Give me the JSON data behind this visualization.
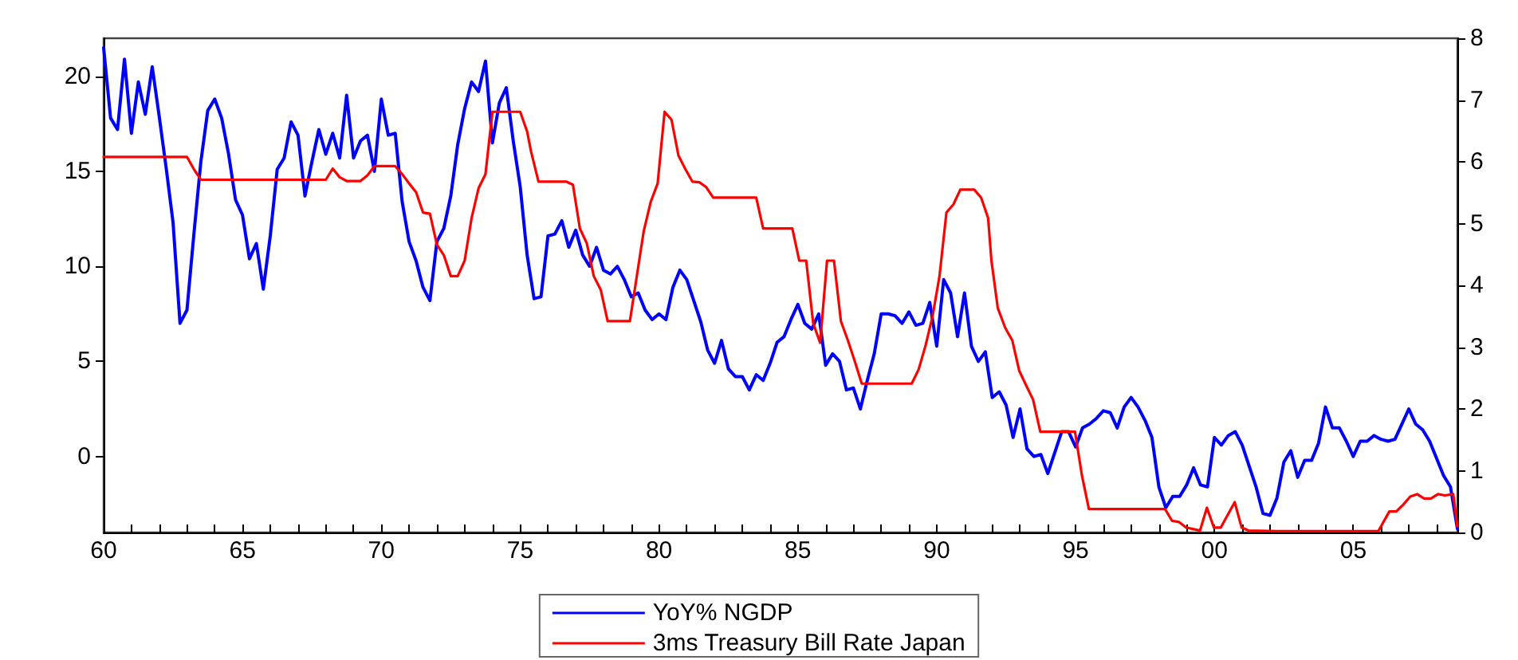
{
  "chart_data": {
    "type": "line",
    "legend": "bottom",
    "xlim": [
      1960,
      2008.75
    ],
    "xticks": [
      {
        "value": 1960,
        "label": "60"
      },
      {
        "value": 1961,
        "label": null
      },
      {
        "value": 1962,
        "label": null
      },
      {
        "value": 1963,
        "label": null
      },
      {
        "value": 1964,
        "label": null
      },
      {
        "value": 1965,
        "label": "65"
      },
      {
        "value": 1966,
        "label": null
      },
      {
        "value": 1967,
        "label": null
      },
      {
        "value": 1968,
        "label": null
      },
      {
        "value": 1969,
        "label": null
      },
      {
        "value": 1970,
        "label": "70"
      },
      {
        "value": 1971,
        "label": null
      },
      {
        "value": 1972,
        "label": null
      },
      {
        "value": 1973,
        "label": null
      },
      {
        "value": 1974,
        "label": null
      },
      {
        "value": 1975,
        "label": "75"
      },
      {
        "value": 1976,
        "label": null
      },
      {
        "value": 1977,
        "label": null
      },
      {
        "value": 1978,
        "label": null
      },
      {
        "value": 1979,
        "label": null
      },
      {
        "value": 1980,
        "label": "80"
      },
      {
        "value": 1981,
        "label": null
      },
      {
        "value": 1982,
        "label": null
      },
      {
        "value": 1983,
        "label": null
      },
      {
        "value": 1984,
        "label": null
      },
      {
        "value": 1985,
        "label": "85"
      },
      {
        "value": 1986,
        "label": null
      },
      {
        "value": 1987,
        "label": null
      },
      {
        "value": 1988,
        "label": null
      },
      {
        "value": 1989,
        "label": null
      },
      {
        "value": 1990,
        "label": "90"
      },
      {
        "value": 1991,
        "label": null
      },
      {
        "value": 1992,
        "label": null
      },
      {
        "value": 1993,
        "label": null
      },
      {
        "value": 1994,
        "label": null
      },
      {
        "value": 1995,
        "label": "95"
      },
      {
        "value": 1996,
        "label": null
      },
      {
        "value": 1997,
        "label": null
      },
      {
        "value": 1998,
        "label": null
      },
      {
        "value": 1999,
        "label": null
      },
      {
        "value": 2000,
        "label": "00"
      },
      {
        "value": 2001,
        "label": null
      },
      {
        "value": 2002,
        "label": null
      },
      {
        "value": 2003,
        "label": null
      },
      {
        "value": 2004,
        "label": null
      },
      {
        "value": 2005,
        "label": "05"
      },
      {
        "value": 2006,
        "label": null
      },
      {
        "value": 2007,
        "label": null
      },
      {
        "value": 2008,
        "label": null
      }
    ],
    "ylim": [
      -4,
      22
    ],
    "yticks": [
      0,
      5,
      10,
      15,
      20
    ],
    "y2lim": [
      0,
      8
    ],
    "y2ticks": [
      0,
      1,
      2,
      3,
      4,
      5,
      6,
      7,
      8
    ],
    "series": [
      {
        "name": "YoY% NGDP",
        "color": "#0000ff",
        "x": [
          1960,
          1960.25,
          1960.5,
          1960.75,
          1961,
          1961.25,
          1961.5,
          1961.75,
          1962,
          1962.25,
          1962.5,
          1962.75,
          1963,
          1963.25,
          1963.5,
          1963.75,
          1964,
          1964.25,
          1964.5,
          1964.75,
          1965,
          1965.25,
          1965.5,
          1965.75,
          1966,
          1966.25,
          1966.5,
          1966.75,
          1967,
          1967.25,
          1967.5,
          1967.75,
          1968,
          1968.25,
          1968.5,
          1968.75,
          1969,
          1969.25,
          1969.5,
          1969.75,
          1970,
          1970.25,
          1970.5,
          1970.75,
          1971,
          1971.25,
          1971.5,
          1971.75,
          1972,
          1972.25,
          1972.5,
          1972.75,
          1973,
          1973.25,
          1973.5,
          1973.75,
          1974,
          1974.25,
          1974.5,
          1974.75,
          1975,
          1975.25,
          1975.5,
          1975.75,
          1976,
          1976.25,
          1976.5,
          1976.75,
          1977,
          1977.25,
          1977.5,
          1977.75,
          1978,
          1978.25,
          1978.5,
          1978.75,
          1979,
          1979.25,
          1979.5,
          1979.75,
          1980,
          1980.25,
          1980.5,
          1980.75,
          1981,
          1981.25,
          1981.5,
          1981.75,
          1982,
          1982.25,
          1982.5,
          1982.75,
          1983,
          1983.25,
          1983.5,
          1983.75,
          1984,
          1984.25,
          1984.5,
          1984.75,
          1985,
          1985.25,
          1985.5,
          1985.75,
          1986,
          1986.25,
          1986.5,
          1986.75,
          1987,
          1987.25,
          1987.5,
          1987.75,
          1988,
          1988.25,
          1988.5,
          1988.75,
          1989,
          1989.25,
          1989.5,
          1989.75,
          1990,
          1990.25,
          1990.5,
          1990.75,
          1991,
          1991.25,
          1991.5,
          1991.75,
          1992,
          1992.25,
          1992.5,
          1992.75,
          1993,
          1993.25,
          1993.5,
          1993.75,
          1994,
          1994.25,
          1994.5,
          1994.75,
          1995,
          1995.25,
          1995.5,
          1995.75,
          1996,
          1996.25,
          1996.5,
          1996.75,
          1997,
          1997.25,
          1997.5,
          1997.75,
          1998,
          1998.25,
          1998.5,
          1998.75,
          1999,
          1999.25,
          1999.5,
          1999.75,
          2000,
          2000.25,
          2000.5,
          2000.75,
          2001,
          2001.25,
          2001.5,
          2001.75,
          2002,
          2002.25,
          2002.5,
          2002.75,
          2003,
          2003.25,
          2003.5,
          2003.75,
          2004,
          2004.25,
          2004.5,
          2004.75,
          2005,
          2005.25,
          2005.5,
          2005.75,
          2006,
          2006.25,
          2006.5,
          2006.75,
          2007,
          2007.25,
          2007.5,
          2007.75,
          2008,
          2008.25,
          2008.5,
          2008.75
        ],
        "values": [
          21.5,
          17.8,
          17.2,
          20.9,
          17.0,
          19.7,
          18.0,
          20.5,
          17.9,
          15.2,
          12.3,
          7.0,
          7.7,
          11.7,
          15.5,
          18.2,
          18.8,
          17.8,
          15.9,
          13.5,
          12.7,
          10.4,
          11.2,
          8.8,
          11.6,
          15.1,
          15.7,
          17.6,
          16.9,
          13.7,
          15.5,
          17.2,
          15.9,
          17.0,
          15.7,
          19.0,
          15.7,
          16.6,
          16.9,
          15.0,
          18.8,
          16.9,
          17.0,
          13.4,
          11.3,
          10.3,
          8.9,
          8.2,
          11.3,
          12.0,
          13.7,
          16.4,
          18.3,
          19.7,
          19.2,
          20.8,
          16.5,
          18.6,
          19.4,
          16.6,
          14.2,
          10.6,
          8.3,
          8.4,
          11.6,
          11.7,
          12.4,
          11.0,
          11.9,
          10.6,
          10.0,
          11.0,
          9.8,
          9.6,
          10.0,
          9.3,
          8.4,
          8.6,
          7.7,
          7.2,
          7.5,
          7.2,
          8.9,
          9.8,
          9.3,
          8.2,
          7.1,
          5.6,
          4.9,
          6.1,
          4.6,
          4.2,
          4.2,
          3.5,
          4.3,
          4.0,
          4.9,
          6.0,
          6.3,
          7.2,
          8.0,
          7.0,
          6.7,
          7.5,
          4.8,
          5.4,
          5.0,
          3.5,
          3.6,
          2.5,
          4.0,
          5.4,
          7.5,
          7.5,
          7.4,
          7.0,
          7.6,
          6.9,
          7.0,
          8.1,
          5.8,
          9.3,
          8.6,
          6.3,
          8.6,
          5.8,
          5.0,
          5.5,
          3.1,
          3.4,
          2.7,
          1.0,
          2.5,
          0.4,
          0.0,
          0.1,
          -0.9,
          0.2,
          1.3,
          1.3,
          0.5,
          1.5,
          1.7,
          2.0,
          2.4,
          2.3,
          1.5,
          2.6,
          3.1,
          2.6,
          1.9,
          1.0,
          -1.6,
          -2.7,
          -2.1,
          -2.1,
          -1.5,
          -0.6,
          -1.5,
          -1.6,
          1.0,
          0.6,
          1.1,
          1.3,
          0.6,
          -0.5,
          -1.6,
          -3.0,
          -3.1,
          -2.2,
          -0.3,
          0.3,
          -1.1,
          -0.2,
          -0.2,
          0.7,
          2.6,
          1.5,
          1.5,
          0.8,
          0.0,
          0.8,
          0.8,
          1.1,
          0.9,
          0.8,
          0.9,
          1.7,
          2.5,
          1.7,
          1.4,
          0.8,
          -0.1,
          -1.0,
          -1.6,
          -3.8
        ]
      },
      {
        "name": "3ms Treasury Bill Rate Japan",
        "color": "#ff0000",
        "axis": "y2",
        "x": [
          1960,
          1963,
          1963.25,
          1963.5,
          1968,
          1968.25,
          1968.5,
          1968.75,
          1969.25,
          1969.5,
          1969.75,
          1970.5,
          1970.75,
          1971,
          1971.25,
          1971.5,
          1971.75,
          1972,
          1972.25,
          1972.5,
          1972.75,
          1973,
          1973.25,
          1973.5,
          1973.75,
          1974,
          1975,
          1975.25,
          1975.39,
          1975.66,
          1976.65,
          1976.9,
          1977.15,
          1977.4,
          1977.65,
          1977.9,
          1978.15,
          1978.95,
          1979.2,
          1979.45,
          1979.7,
          1979.95,
          1980.2,
          1980.45,
          1980.7,
          1980.95,
          1981.2,
          1981.45,
          1981.7,
          1981.95,
          1983.5,
          1983.75,
          1984.8,
          1985.05,
          1985.3,
          1985.55,
          1985.8,
          1986.05,
          1986.3,
          1986.55,
          1986.8,
          1987.05,
          1987.3,
          1989.1,
          1989.35,
          1989.6,
          1989.85,
          1990.1,
          1990.35,
          1990.6,
          1990.85,
          1991.35,
          1991.6,
          1991.85,
          1991.97,
          1992.2,
          1992.47,
          1992.72,
          1992.97,
          1993.22,
          1993.47,
          1993.73,
          1994.98,
          1995.23,
          1995.48,
          1998.22,
          1998.47,
          1998.72,
          1998.98,
          1999.48,
          1999.73,
          1999.98,
          2000.23,
          2000.73,
          2000.98,
          2001.24,
          2002.24,
          2005.9,
          2006.3,
          2006.55,
          2006.8,
          2007.05,
          2007.3,
          2007.55,
          2007.8,
          2008.05,
          2008.3,
          2008.6,
          2008.75
        ],
        "values": [
          6.08,
          6.08,
          5.88,
          5.71,
          5.71,
          5.89,
          5.75,
          5.69,
          5.69,
          5.78,
          5.93,
          5.93,
          5.8,
          5.65,
          5.51,
          5.18,
          5.16,
          4.66,
          4.49,
          4.15,
          4.15,
          4.4,
          5.09,
          5.57,
          5.8,
          6.81,
          6.81,
          6.49,
          6.17,
          5.68,
          5.68,
          5.63,
          4.92,
          4.68,
          4.15,
          3.93,
          3.42,
          3.42,
          4.15,
          4.88,
          5.35,
          5.65,
          6.81,
          6.68,
          6.1,
          5.88,
          5.68,
          5.67,
          5.59,
          5.42,
          5.42,
          4.92,
          4.92,
          4.4,
          4.4,
          3.39,
          3.07,
          4.4,
          4.4,
          3.42,
          3.11,
          2.77,
          2.41,
          2.41,
          2.64,
          3.03,
          3.5,
          4.15,
          5.18,
          5.31,
          5.55,
          5.55,
          5.42,
          5.09,
          4.4,
          3.63,
          3.31,
          3.11,
          2.62,
          2.38,
          2.15,
          1.63,
          1.63,
          0.92,
          0.38,
          0.38,
          0.19,
          0.17,
          0.08,
          0.03,
          0.4,
          0.08,
          0.08,
          0.49,
          0.08,
          0.03,
          0.02,
          0.02,
          0.34,
          0.34,
          0.45,
          0.58,
          0.62,
          0.55,
          0.55,
          0.62,
          0.6,
          0.62,
          0.1
        ]
      }
    ]
  }
}
